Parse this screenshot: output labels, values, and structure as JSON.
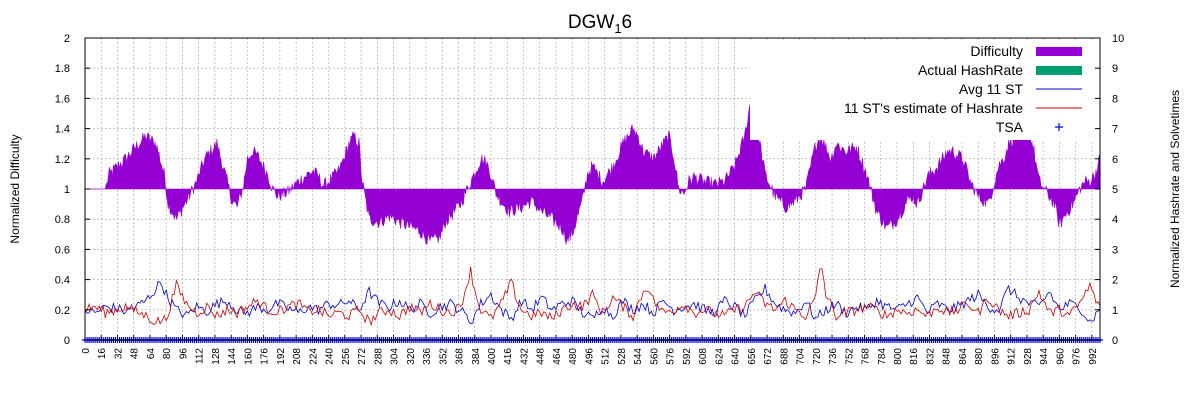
{
  "chart_data": {
    "type": "area",
    "title_prefix": "DGW",
    "title_sub": "1",
    "title_suffix": "6",
    "ylabel": "Normalized Difficulty",
    "y2label": "Normalized Hashrate and Solvetimes",
    "ylim": [
      0,
      2
    ],
    "y2lim": [
      0,
      10
    ],
    "xlim": [
      0,
      1000
    ],
    "yticks": [
      "0",
      "0.2",
      "0.4",
      "0.6",
      "0.8",
      "1",
      "1.2",
      "1.4",
      "1.6",
      "1.8",
      "2"
    ],
    "y2ticks": [
      "0",
      "1",
      "2",
      "3",
      "4",
      "5",
      "6",
      "7",
      "8",
      "9",
      "10"
    ],
    "xticks": [
      "0",
      "16",
      "32",
      "48",
      "64",
      "80",
      "96",
      "112",
      "128",
      "144",
      "160",
      "176",
      "192",
      "208",
      "224",
      "240",
      "256",
      "272",
      "288",
      "304",
      "320",
      "336",
      "352",
      "368",
      "384",
      "400",
      "416",
      "432",
      "448",
      "464",
      "480",
      "496",
      "512",
      "528",
      "544",
      "560",
      "576",
      "592",
      "608",
      "624",
      "640",
      "656",
      "672",
      "688",
      "704",
      "720",
      "736",
      "752",
      "768",
      "784",
      "800",
      "816",
      "832",
      "848",
      "864",
      "880",
      "896",
      "912",
      "928",
      "944",
      "960",
      "976",
      "992"
    ],
    "grid": true,
    "legend_position": "top-right",
    "colors": {
      "difficulty": "#9400d3",
      "actual_hashrate": "#009e73",
      "avg_st": "#0000cc",
      "estimate": "#cc0000",
      "tsa": "#0000ff"
    },
    "legend": [
      {
        "key": "difficulty",
        "label": "Difficulty",
        "style": "box"
      },
      {
        "key": "actual_hashrate",
        "label": "Actual HashRate",
        "style": "box"
      },
      {
        "key": "avg_st",
        "label": "Avg 11 ST",
        "style": "line"
      },
      {
        "key": "estimate",
        "label": "11 ST's estimate of Hashrate",
        "style": "line"
      },
      {
        "key": "tsa",
        "label": "TSA",
        "style": "plus"
      }
    ],
    "difficulty_keypoints": {
      "x": [
        0,
        20,
        24,
        40,
        50,
        60,
        70,
        78,
        82,
        90,
        100,
        110,
        118,
        120,
        130,
        140,
        145,
        150,
        156,
        160,
        165,
        170,
        180,
        185,
        190,
        200,
        210,
        220,
        225,
        230,
        235,
        240,
        250,
        255,
        260,
        265,
        270,
        273,
        280,
        290,
        300,
        310,
        330,
        340,
        350,
        355,
        360,
        370,
        380,
        390,
        395,
        400,
        405,
        410,
        418,
        430,
        440,
        450,
        460,
        470,
        475,
        480,
        490,
        495,
        500,
        510,
        520,
        530,
        540,
        545,
        550,
        560,
        570,
        575,
        580,
        585,
        590,
        595,
        600,
        610,
        620,
        630,
        640,
        650,
        655,
        660,
        665,
        670,
        680,
        690,
        700,
        710,
        720,
        725,
        735,
        740,
        750,
        760,
        770,
        780,
        790,
        800,
        810,
        815,
        820,
        830,
        840,
        850,
        855,
        865,
        872,
        880,
        890,
        900,
        905,
        910,
        920,
        928,
        935,
        940,
        950,
        955,
        960,
        968,
        975,
        980,
        985,
        990,
        995,
        1000
      ],
      "y": [
        1,
        1,
        1.1,
        1.2,
        1.28,
        1.35,
        1.3,
        1.1,
        0.9,
        0.8,
        0.92,
        1.05,
        1.2,
        1.22,
        1.3,
        1.05,
        0.92,
        0.88,
        1.02,
        1.2,
        1.25,
        1.22,
        1.1,
        1.0,
        0.95,
        0.98,
        1.05,
        1.1,
        1.12,
        1.08,
        1.02,
        1.05,
        1.12,
        1.2,
        1.3,
        1.35,
        1.3,
        1.05,
        0.8,
        0.78,
        0.82,
        0.78,
        0.72,
        0.65,
        0.68,
        0.78,
        0.82,
        0.9,
        1.05,
        1.2,
        1.18,
        1.1,
        0.97,
        0.92,
        0.85,
        0.88,
        0.92,
        0.85,
        0.8,
        0.74,
        0.66,
        0.7,
        0.92,
        1.1,
        1.15,
        1.05,
        1.15,
        1.3,
        1.4,
        1.35,
        1.25,
        1.2,
        1.3,
        1.35,
        1.22,
        1.0,
        0.97,
        1.05,
        1.08,
        1.05,
        1.03,
        1.05,
        1.15,
        1.35,
        1.55,
        1.5,
        1.3,
        1.1,
        0.95,
        0.88,
        0.92,
        1.0,
        1.3,
        1.35,
        1.2,
        1.3,
        1.25,
        1.28,
        1.1,
        0.85,
        0.74,
        0.8,
        0.92,
        0.95,
        0.9,
        1.08,
        1.15,
        1.25,
        1.25,
        1.2,
        1.05,
        0.95,
        0.9,
        1.15,
        1.2,
        1.3,
        1.38,
        1.45,
        1.25,
        1.05,
        0.95,
        0.9,
        0.76,
        0.85,
        0.92,
        1.0,
        1.05,
        1.05,
        1.1,
        1.2
      ]
    },
    "avg_st_keypoints": {
      "x": [
        0,
        10,
        20,
        30,
        40,
        50,
        60,
        70,
        75,
        80,
        90,
        100,
        110,
        120,
        130,
        140,
        150,
        160,
        170,
        180,
        190,
        200,
        210,
        220,
        230,
        240,
        250,
        260,
        270,
        280,
        290,
        300,
        310,
        320,
        330,
        340,
        350,
        360,
        370,
        380,
        390,
        400,
        410,
        420,
        430,
        440,
        450,
        460,
        470,
        480,
        490,
        500,
        510,
        520,
        530,
        540,
        550,
        560,
        570,
        580,
        590,
        600,
        610,
        620,
        630,
        640,
        650,
        660,
        670,
        680,
        690,
        700,
        710,
        720,
        730,
        740,
        750,
        760,
        770,
        780,
        790,
        800,
        810,
        820,
        830,
        840,
        850,
        860,
        870,
        880,
        890,
        900,
        910,
        920,
        930,
        940,
        950,
        960,
        970,
        980,
        990,
        1000
      ],
      "y": [
        1,
        0.9,
        1.1,
        1.05,
        0.95,
        1.1,
        1.3,
        1.7,
        1.95,
        1.5,
        1.0,
        0.8,
        1.1,
        0.95,
        1.2,
        1.3,
        1.0,
        0.9,
        1.1,
        1.0,
        1.2,
        1.05,
        0.9,
        1.1,
        1.0,
        1.2,
        1.15,
        1.3,
        1.0,
        1.6,
        1.2,
        1.1,
        1.3,
        1.0,
        1.2,
        0.9,
        1.1,
        1.2,
        1.0,
        0.6,
        1.2,
        1.5,
        1.0,
        0.7,
        1.3,
        1.0,
        1.4,
        1.0,
        1.2,
        1.3,
        0.9,
        0.7,
        1.1,
        0.8,
        1.3,
        1.0,
        1.2,
        0.9,
        1.3,
        1.0,
        1.1,
        1.2,
        1.0,
        0.9,
        1.3,
        1.1,
        0.8,
        1.3,
        1.7,
        1.2,
        1.0,
        0.9,
        1.3,
        0.7,
        1.0,
        1.2,
        0.9,
        1.1,
        1.0,
        1.3,
        1.1,
        1.0,
        1.2,
        1.4,
        0.9,
        1.2,
        1.0,
        1.1,
        1.3,
        1.5,
        1.1,
        1.0,
        1.7,
        1.4,
        1.2,
        1.1,
        1.6,
        1.0,
        1.2,
        1.1,
        0.6,
        1.0
      ]
    },
    "estimate_keypoints": {
      "x": [
        0,
        10,
        20,
        30,
        40,
        50,
        60,
        70,
        80,
        90,
        95,
        100,
        110,
        120,
        130,
        140,
        150,
        160,
        170,
        180,
        190,
        200,
        210,
        220,
        230,
        240,
        250,
        260,
        270,
        280,
        290,
        300,
        310,
        320,
        330,
        340,
        350,
        360,
        370,
        380,
        385,
        390,
        400,
        410,
        420,
        425,
        430,
        440,
        450,
        460,
        470,
        480,
        490,
        500,
        510,
        520,
        530,
        540,
        550,
        555,
        560,
        570,
        580,
        590,
        600,
        610,
        620,
        630,
        640,
        650,
        660,
        670,
        680,
        690,
        700,
        710,
        720,
        725,
        730,
        740,
        750,
        760,
        770,
        780,
        790,
        800,
        810,
        820,
        830,
        840,
        850,
        860,
        870,
        880,
        890,
        900,
        910,
        920,
        930,
        940,
        950,
        960,
        970,
        980,
        990,
        1000
      ],
      "y": [
        1,
        1.1,
        0.9,
        1.0,
        1.1,
        0.95,
        0.8,
        0.6,
        0.7,
        1.8,
        1.5,
        1.2,
        0.9,
        1.1,
        0.8,
        1.0,
        0.9,
        1.1,
        1.3,
        1.0,
        0.95,
        1.1,
        1.2,
        0.95,
        1.0,
        0.8,
        0.9,
        0.8,
        1.0,
        0.6,
        0.9,
        1.0,
        0.8,
        1.1,
        0.9,
        1.2,
        1.0,
        0.9,
        1.1,
        2.3,
        1.5,
        1.0,
        0.7,
        1.2,
        1.9,
        1.4,
        1.0,
        0.8,
        0.9,
        0.7,
        1.0,
        1.2,
        1.1,
        1.5,
        0.9,
        1.4,
        1.1,
        0.8,
        1.6,
        1.8,
        1.3,
        0.9,
        1.0,
        1.2,
        0.9,
        1.0,
        0.9,
        0.8,
        1.0,
        1.1,
        1.6,
        1.2,
        1.0,
        1.3,
        1.0,
        0.8,
        1.4,
        2.6,
        1.5,
        0.8,
        0.9,
        1.0,
        1.1,
        1.0,
        0.8,
        1.0,
        0.9,
        1.0,
        0.8,
        1.1,
        0.9,
        1.0,
        1.2,
        0.9,
        1.4,
        1.0,
        0.8,
        0.9,
        1.0,
        1.6,
        0.9,
        1.0,
        0.8,
        1.2,
        1.8,
        1.0
      ]
    }
  }
}
